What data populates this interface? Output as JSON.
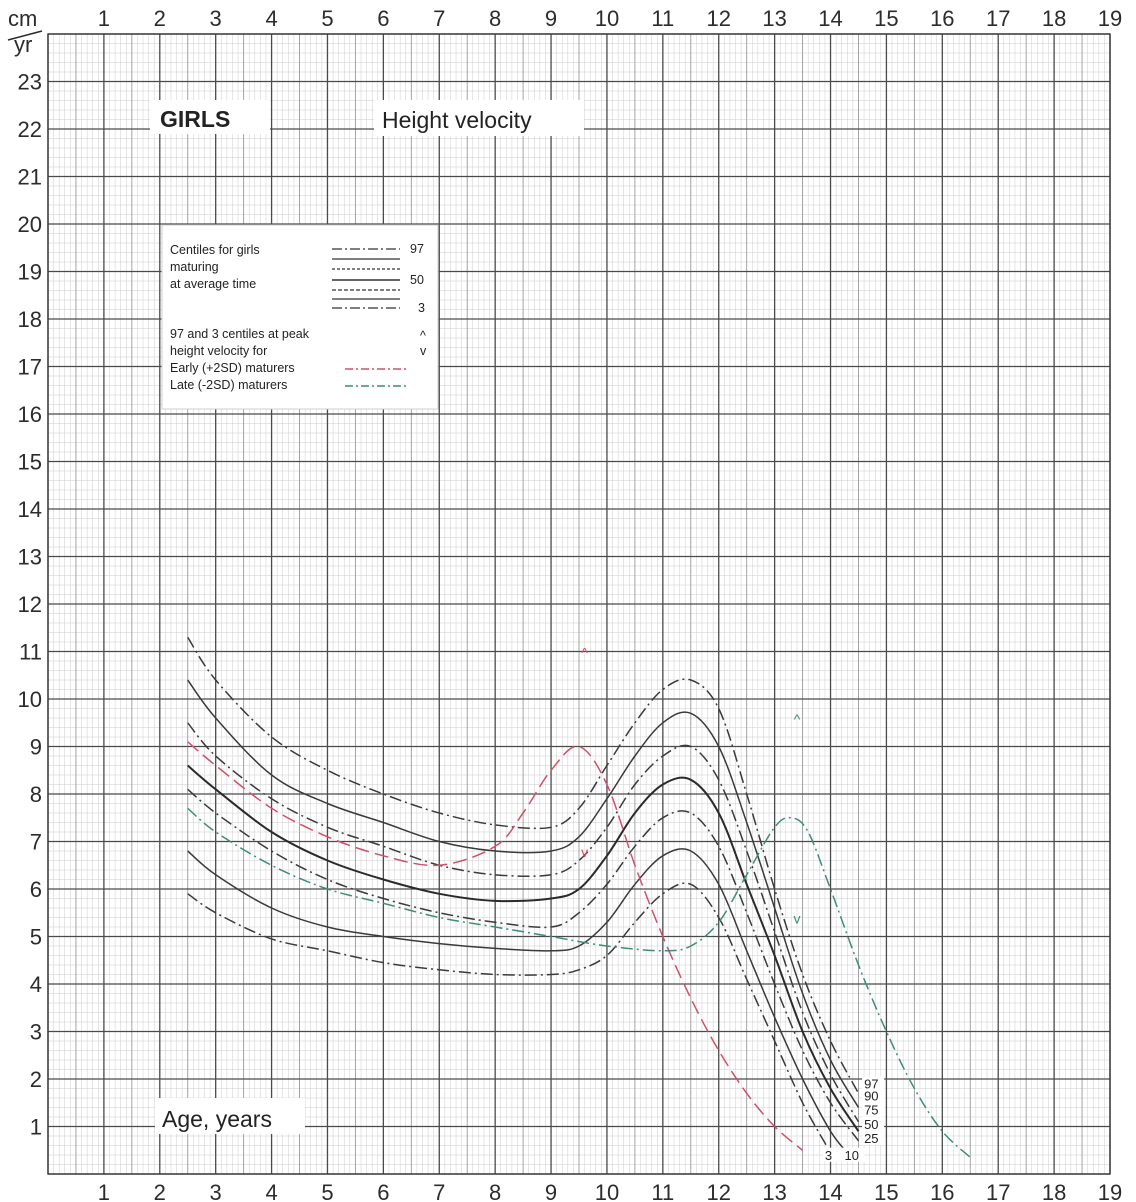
{
  "chart_data": {
    "type": "line",
    "title": "GIRLS",
    "subtitle": "Height velocity",
    "xlabel": "Age, years",
    "ylabel_top": "cm",
    "ylabel_bottom": "yr",
    "xlim": [
      0,
      19
    ],
    "ylim": [
      0,
      24
    ],
    "x_ticks": [
      "1",
      "2",
      "3",
      "4",
      "5",
      "6",
      "7",
      "8",
      "9",
      "10",
      "11",
      "12",
      "13",
      "14",
      "15",
      "16",
      "17",
      "18",
      "19"
    ],
    "y_ticks": [
      "1",
      "2",
      "3",
      "4",
      "5",
      "6",
      "7",
      "8",
      "9",
      "10",
      "11",
      "12",
      "13",
      "14",
      "15",
      "16",
      "17",
      "18",
      "19",
      "20",
      "21",
      "22",
      "23"
    ],
    "grid": true,
    "legend": {
      "line1": "Centiles for girls",
      "line2": "maturing",
      "line3": "at average time",
      "label_97": "97",
      "label_50": "50",
      "label_3": "3",
      "peak_line1": "97 and 3 centiles at peak",
      "peak_line2": "height velocity for",
      "early": "Early (+2SD) maturers",
      "late": "Late (-2SD) maturers",
      "up_mark": "^",
      "down_mark": "v"
    },
    "series": [
      {
        "name": "97",
        "style": "dashdot",
        "color": "#3a3a3a",
        "points": [
          [
            2.5,
            11.3
          ],
          [
            3,
            10.4
          ],
          [
            4,
            9.2
          ],
          [
            5,
            8.5
          ],
          [
            6,
            8.0
          ],
          [
            7,
            7.6
          ],
          [
            8,
            7.35
          ],
          [
            9,
            7.3
          ],
          [
            9.5,
            7.7
          ],
          [
            10,
            8.6
          ],
          [
            10.5,
            9.5
          ],
          [
            11,
            10.2
          ],
          [
            11.5,
            10.4
          ],
          [
            12,
            9.8
          ],
          [
            12.5,
            8.0
          ],
          [
            13,
            6.0
          ],
          [
            13.5,
            4.2
          ],
          [
            14,
            2.8
          ],
          [
            14.5,
            1.7
          ]
        ]
      },
      {
        "name": "90",
        "style": "solid",
        "color": "#3a3a3a",
        "points": [
          [
            2.5,
            10.4
          ],
          [
            3,
            9.6
          ],
          [
            4,
            8.4
          ],
          [
            5,
            7.8
          ],
          [
            6,
            7.4
          ],
          [
            7,
            7.0
          ],
          [
            8,
            6.8
          ],
          [
            9,
            6.8
          ],
          [
            9.5,
            7.1
          ],
          [
            10,
            7.9
          ],
          [
            10.5,
            8.8
          ],
          [
            11,
            9.5
          ],
          [
            11.5,
            9.7
          ],
          [
            12,
            9.0
          ],
          [
            12.5,
            7.4
          ],
          [
            13,
            5.6
          ],
          [
            13.5,
            3.8
          ],
          [
            14,
            2.4
          ],
          [
            14.5,
            1.4
          ]
        ]
      },
      {
        "name": "75",
        "style": "dashdot",
        "color": "#3a3a3a",
        "points": [
          [
            2.5,
            9.5
          ],
          [
            3,
            8.8
          ],
          [
            4,
            7.9
          ],
          [
            5,
            7.3
          ],
          [
            6,
            6.9
          ],
          [
            7,
            6.5
          ],
          [
            8,
            6.3
          ],
          [
            9,
            6.3
          ],
          [
            9.5,
            6.6
          ],
          [
            10,
            7.3
          ],
          [
            10.5,
            8.2
          ],
          [
            11,
            8.8
          ],
          [
            11.5,
            9.0
          ],
          [
            12,
            8.3
          ],
          [
            12.5,
            6.8
          ],
          [
            13,
            5.1
          ],
          [
            13.5,
            3.4
          ],
          [
            14,
            2.1
          ],
          [
            14.5,
            1.1
          ]
        ]
      },
      {
        "name": "50",
        "style": "solid",
        "color": "#2a2a2a",
        "points": [
          [
            2.5,
            8.6
          ],
          [
            3,
            8.1
          ],
          [
            4,
            7.2
          ],
          [
            5,
            6.6
          ],
          [
            6,
            6.2
          ],
          [
            7,
            5.9
          ],
          [
            8,
            5.75
          ],
          [
            9,
            5.8
          ],
          [
            9.5,
            6.0
          ],
          [
            10,
            6.7
          ],
          [
            10.5,
            7.6
          ],
          [
            11,
            8.2
          ],
          [
            11.5,
            8.3
          ],
          [
            12,
            7.6
          ],
          [
            12.5,
            6.1
          ],
          [
            13,
            4.6
          ],
          [
            13.5,
            3.0
          ],
          [
            14,
            1.8
          ],
          [
            14.5,
            0.9
          ]
        ]
      },
      {
        "name": "25",
        "style": "dashdot",
        "color": "#3a3a3a",
        "points": [
          [
            2.5,
            8.1
          ],
          [
            3,
            7.6
          ],
          [
            4,
            6.8
          ],
          [
            5,
            6.2
          ],
          [
            6,
            5.8
          ],
          [
            7,
            5.5
          ],
          [
            8,
            5.3
          ],
          [
            9,
            5.2
          ],
          [
            9.5,
            5.5
          ],
          [
            10,
            6.1
          ],
          [
            10.5,
            6.9
          ],
          [
            11,
            7.5
          ],
          [
            11.5,
            7.6
          ],
          [
            12,
            6.9
          ],
          [
            12.5,
            5.5
          ],
          [
            13,
            4.0
          ],
          [
            13.5,
            2.6
          ],
          [
            14,
            1.5
          ],
          [
            14.5,
            0.7
          ]
        ]
      },
      {
        "name": "10",
        "style": "solid",
        "color": "#3a3a3a",
        "points": [
          [
            2.5,
            6.8
          ],
          [
            3,
            6.3
          ],
          [
            4,
            5.6
          ],
          [
            5,
            5.2
          ],
          [
            6,
            5.0
          ],
          [
            7,
            4.85
          ],
          [
            8,
            4.75
          ],
          [
            9,
            4.7
          ],
          [
            9.5,
            4.8
          ],
          [
            10,
            5.3
          ],
          [
            10.5,
            6.1
          ],
          [
            11,
            6.7
          ],
          [
            11.5,
            6.8
          ],
          [
            12,
            6.1
          ],
          [
            12.5,
            4.7
          ],
          [
            13,
            3.3
          ],
          [
            13.5,
            2.0
          ],
          [
            14,
            0.9
          ],
          [
            14.3,
            0.45
          ]
        ]
      },
      {
        "name": "3",
        "style": "dashdot",
        "color": "#3a3a3a",
        "points": [
          [
            2.5,
            5.9
          ],
          [
            3,
            5.5
          ],
          [
            4,
            4.95
          ],
          [
            5,
            4.7
          ],
          [
            6,
            4.45
          ],
          [
            7,
            4.3
          ],
          [
            8,
            4.2
          ],
          [
            9,
            4.2
          ],
          [
            9.5,
            4.3
          ],
          [
            10,
            4.6
          ],
          [
            10.5,
            5.3
          ],
          [
            11,
            5.9
          ],
          [
            11.5,
            6.1
          ],
          [
            12,
            5.4
          ],
          [
            12.5,
            4.1
          ],
          [
            13,
            2.8
          ],
          [
            13.5,
            1.5
          ],
          [
            14,
            0.45
          ]
        ]
      },
      {
        "name": "Early (+2SD) maturers",
        "style": "dashed",
        "color": "#d0506a",
        "points": [
          [
            2.5,
            9.1
          ],
          [
            3,
            8.6
          ],
          [
            4,
            7.7
          ],
          [
            5,
            7.1
          ],
          [
            6,
            6.7
          ],
          [
            7,
            6.5
          ],
          [
            8,
            6.9
          ],
          [
            8.5,
            7.6
          ],
          [
            9,
            8.5
          ],
          [
            9.5,
            9.0
          ],
          [
            10,
            8.2
          ],
          [
            10.5,
            6.5
          ],
          [
            11,
            5.0
          ],
          [
            11.5,
            3.7
          ],
          [
            12,
            2.6
          ],
          [
            12.5,
            1.7
          ],
          [
            13,
            1.0
          ],
          [
            13.5,
            0.5
          ]
        ]
      },
      {
        "name": "Late (-2SD) maturers",
        "style": "dashdot",
        "color": "#3d8c7a",
        "points": [
          [
            2.5,
            7.7
          ],
          [
            3,
            7.2
          ],
          [
            4,
            6.5
          ],
          [
            5,
            6.0
          ],
          [
            6,
            5.7
          ],
          [
            7,
            5.4
          ],
          [
            8,
            5.2
          ],
          [
            9,
            5.0
          ],
          [
            10,
            4.8
          ],
          [
            11,
            4.7
          ],
          [
            11.5,
            4.8
          ],
          [
            12,
            5.3
          ],
          [
            12.5,
            6.3
          ],
          [
            13,
            7.3
          ],
          [
            13.3,
            7.5
          ],
          [
            13.6,
            7.2
          ],
          [
            14,
            6.0
          ],
          [
            14.5,
            4.4
          ],
          [
            15,
            3.0
          ],
          [
            15.5,
            1.8
          ],
          [
            16,
            0.9
          ],
          [
            16.5,
            0.35
          ]
        ]
      }
    ],
    "peak_markers": [
      {
        "series": "Early (+2SD) maturers",
        "mark": "^",
        "x": 9.6,
        "y": 11.0,
        "color": "#d0506a"
      },
      {
        "series": "Early (+2SD) maturers",
        "mark": "v",
        "x": 9.6,
        "y": 6.8,
        "color": "#d0506a"
      },
      {
        "series": "Late (-2SD) maturers",
        "mark": "^",
        "x": 13.4,
        "y": 9.6,
        "color": "#3d8c7a"
      },
      {
        "series": "Late (-2SD) maturers",
        "mark": "v",
        "x": 13.4,
        "y": 5.4,
        "color": "#3d8c7a"
      }
    ],
    "end_labels": [
      "97",
      "90",
      "75",
      "50",
      "25",
      "3",
      "10"
    ]
  }
}
